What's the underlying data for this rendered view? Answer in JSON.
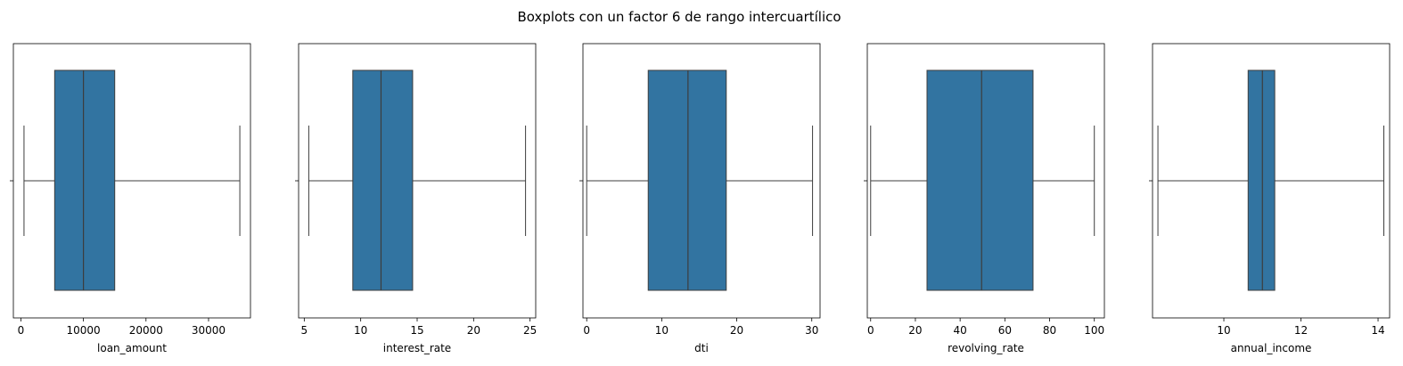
{
  "figure": {
    "title": "Boxplots con un factor 6 de rango intercuartílico"
  },
  "colors": {
    "box_fill": "#3274a1",
    "line": "#3d3d3d",
    "frame": "#000000"
  },
  "chart_data": [
    {
      "type": "box",
      "xlabel": "loan_amount",
      "xlim": [
        -1200,
        36700
      ],
      "xticks": [
        0,
        10000,
        20000,
        30000
      ],
      "xtick_labels": [
        "0",
        "10000",
        "20000",
        "30000"
      ],
      "whisker_low": 500,
      "q1": 5400,
      "median": 10000,
      "q3": 15000,
      "whisker_high": 35000
    },
    {
      "type": "box",
      "xlabel": "interest_rate",
      "xlim": [
        4.5,
        25.5
      ],
      "xticks": [
        5,
        10,
        15,
        20,
        25
      ],
      "xtick_labels": [
        "5",
        "10",
        "15",
        "20",
        "25"
      ],
      "whisker_low": 5.4,
      "q1": 9.3,
      "median": 11.8,
      "q3": 14.6,
      "whisker_high": 24.6
    },
    {
      "type": "box",
      "xlabel": "dti",
      "xlim": [
        -0.5,
        31.1
      ],
      "xticks": [
        0,
        10,
        20,
        30
      ],
      "xtick_labels": [
        "0",
        "10",
        "20",
        "30"
      ],
      "whisker_low": 0,
      "q1": 8.2,
      "median": 13.5,
      "q3": 18.6,
      "whisker_high": 30.1
    },
    {
      "type": "box",
      "xlabel": "revolving_rate",
      "xlim": [
        -1.5,
        104.5
      ],
      "xticks": [
        0,
        20,
        40,
        60,
        80,
        100
      ],
      "xtick_labels": [
        "0",
        "20",
        "40",
        "60",
        "80",
        "100"
      ],
      "whisker_low": 0,
      "q1": 25.2,
      "median": 49.6,
      "q3": 72.6,
      "whisker_high": 100
    },
    {
      "type": "box",
      "xlabel": "annual_income",
      "xlim": [
        8.15,
        14.3
      ],
      "xticks": [
        10,
        12,
        14
      ],
      "xtick_labels": [
        "10",
        "12",
        "14"
      ],
      "whisker_low": 8.29,
      "q1": 10.63,
      "median": 11.0,
      "q3": 11.32,
      "whisker_high": 14.15
    }
  ]
}
